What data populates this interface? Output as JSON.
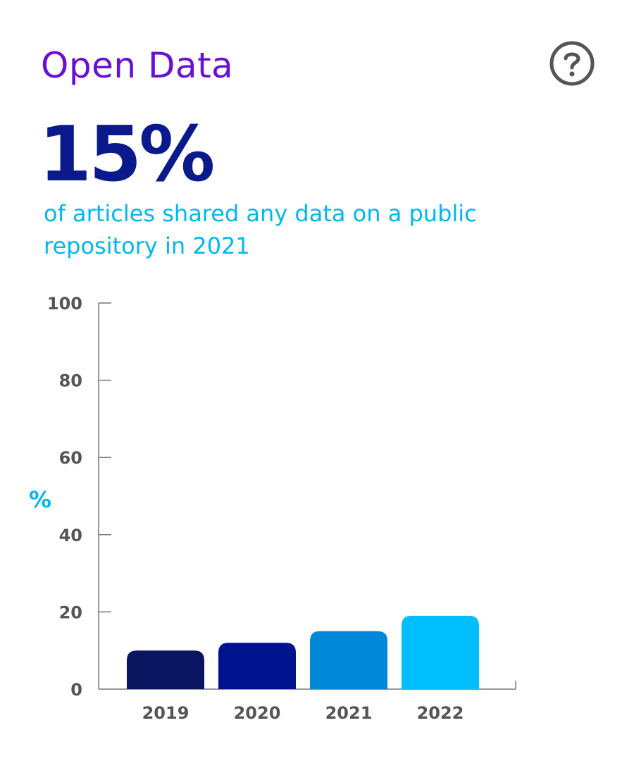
{
  "header": {
    "title": "Open Data",
    "help_icon": "question-circle-icon"
  },
  "headline": {
    "stat": "15%",
    "description": "of articles shared any data on a public repository in 2021"
  },
  "colors": {
    "title": "#6a0fd6",
    "stat": "#0a1a8c",
    "description": "#00b8f0",
    "axis": "#777777"
  },
  "chart_data": {
    "type": "bar",
    "categories": [
      "2019",
      "2020",
      "2021",
      "2022"
    ],
    "values": [
      10,
      12,
      15,
      19
    ],
    "bar_colors": [
      "#0a1560",
      "#00138e",
      "#0088d8",
      "#00bfff"
    ],
    "xlabel": "",
    "ylabel": "%",
    "ylim": [
      0,
      100
    ],
    "yticks": [
      0,
      20,
      40,
      60,
      80,
      100
    ],
    "grid": false,
    "legend": "none"
  }
}
